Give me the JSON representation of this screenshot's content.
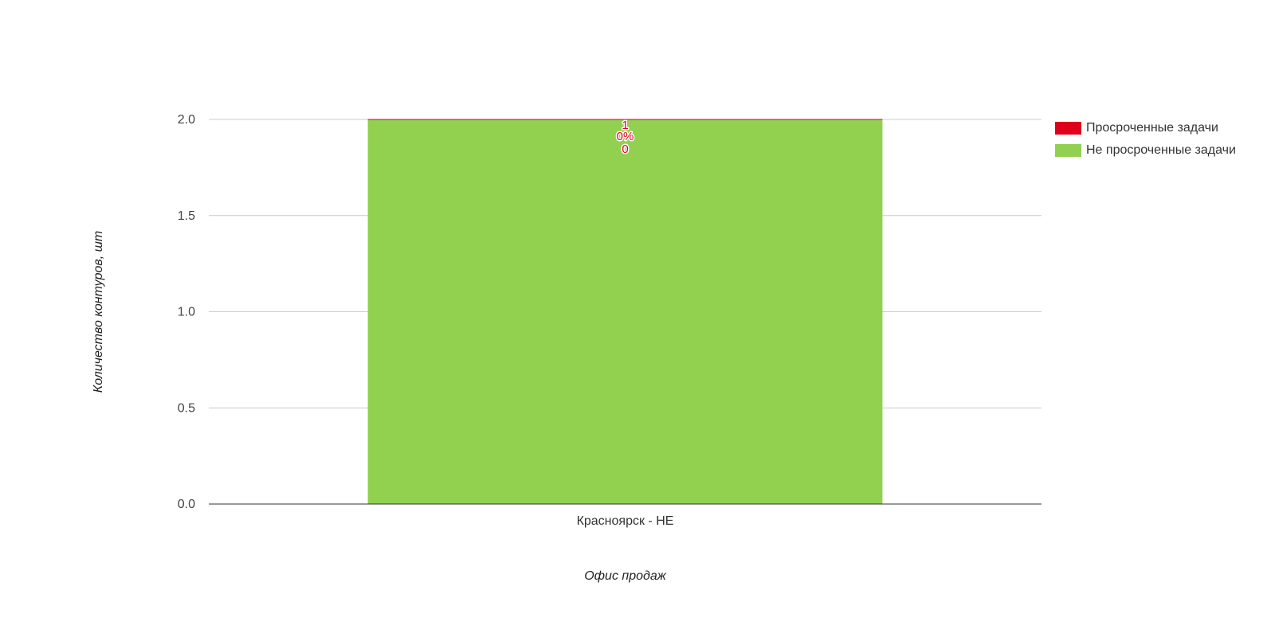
{
  "chart_data": {
    "type": "bar",
    "stacked": true,
    "categories": [
      "Красноярск - НЕ"
    ],
    "series": [
      {
        "name": "Не просроченные задачи",
        "color": "#92d050",
        "values": [
          2
        ],
        "labels": [
          "",
          ""
        ]
      },
      {
        "name": "Просроченные задачи",
        "color": "#e0001b",
        "values": [
          0
        ],
        "labels": [
          "0%",
          "0"
        ]
      }
    ],
    "xlabel": "Офис продаж",
    "ylabel": "Количество контуров, шт",
    "ylim": [
      0,
      2
    ],
    "yticks": [
      "0.0",
      "0.5",
      "1.0",
      "1.5",
      "2.0"
    ],
    "grid": true,
    "legend": {
      "placement": "right",
      "items": [
        {
          "label": "Просроченные задачи",
          "color": "#e0001b"
        },
        {
          "label": "Не просроченные задачи",
          "color": "#92d050"
        }
      ]
    },
    "data_labels": [
      "1",
      "0%",
      "0"
    ]
  }
}
